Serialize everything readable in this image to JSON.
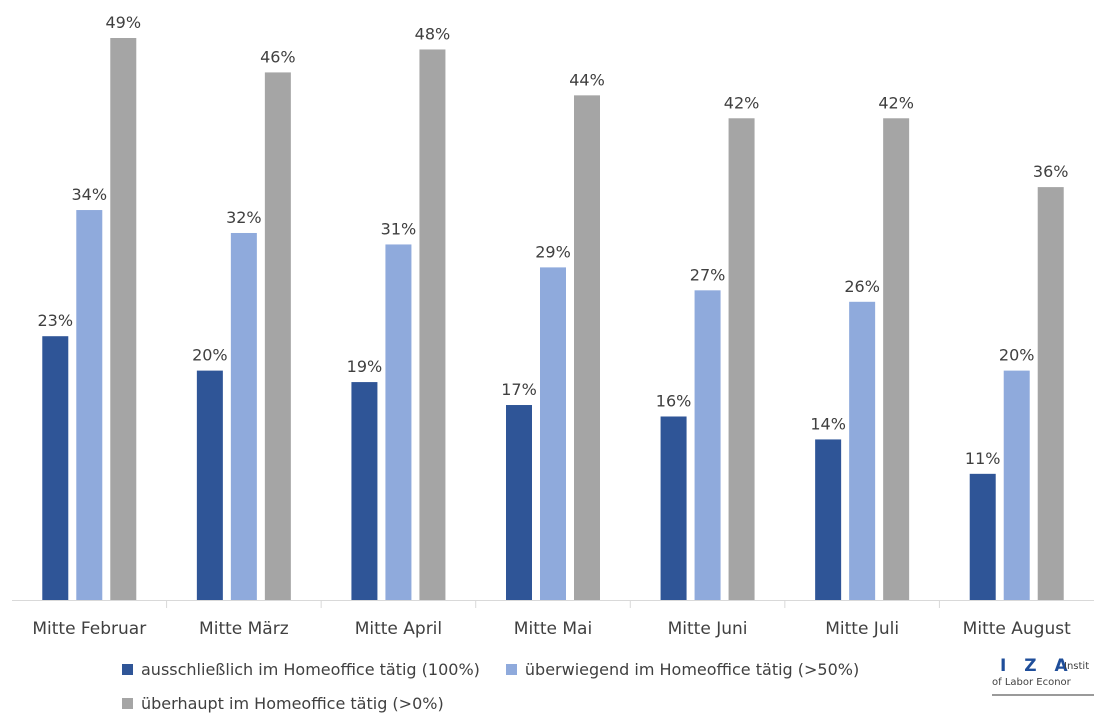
{
  "chart_data": {
    "type": "bar",
    "categories": [
      "Mitte Februar",
      "Mitte März",
      "Mitte April",
      "Mitte Mai",
      "Mitte Juni",
      "Mitte Juli",
      "Mitte August"
    ],
    "series": [
      {
        "name": "ausschließlich im Homeoffice tätig (100%)",
        "values": [
          23,
          20,
          19,
          17,
          16,
          14,
          11
        ],
        "labels": [
          "23%",
          "20%",
          "19%",
          "17%",
          "16%",
          "14%",
          "11%"
        ],
        "color": "#2f5597"
      },
      {
        "name": "überwiegend im Homeoffice tätig (>50%)",
        "values": [
          34,
          32,
          31,
          29,
          27,
          26,
          20
        ],
        "labels": [
          "34%",
          "32%",
          "31%",
          "29%",
          "27%",
          "26%",
          "20%"
        ],
        "color": "#8faadc"
      },
      {
        "name": "überhaupt im Homeoffice tätig (>0%)",
        "values": [
          49,
          46,
          48,
          44,
          42,
          42,
          36
        ],
        "labels": [
          "49%",
          "46%",
          "48%",
          "44%",
          "42%",
          "42%",
          "36%"
        ],
        "color": "#a5a5a5"
      }
    ],
    "title": "",
    "xlabel": "",
    "ylabel": "",
    "ylim": [
      0,
      50
    ],
    "grid": false,
    "legend_position": "bottom",
    "axis_color": "#d9d9d9"
  },
  "logo": {
    "mark": "I Z A",
    "line1": "Instit",
    "line2": "of Labor Econor"
  }
}
